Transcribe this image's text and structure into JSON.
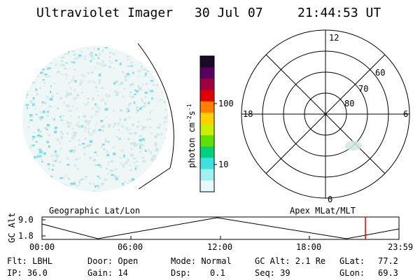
{
  "header": {
    "instrument": "Ultraviolet Imager",
    "date": "30 Jul 07",
    "time": "21:44:53 UT"
  },
  "colorbar": {
    "label": "photon cm⁻²s⁻¹",
    "label_base": "photon cm",
    "label_sup1": "-2",
    "label_mid": "s",
    "label_sup2": "-1",
    "ticks": [
      "100",
      "10"
    ],
    "colors": [
      "#1a0a2a",
      "#5a0060",
      "#a00040",
      "#e00000",
      "#ff8000",
      "#ffd000",
      "#c8f000",
      "#60e000",
      "#00d080",
      "#40e0e0",
      "#a0f0f0",
      "#e8f8f8"
    ]
  },
  "polar": {
    "mlt_labels": [
      "12",
      "18",
      "6",
      "0"
    ],
    "mlat_labels": [
      "60",
      "70",
      "80"
    ]
  },
  "timeline": {
    "left_label": "Geographic Lat/Lon",
    "right_label": "Apex MLat/MLT",
    "y_axis_title": "GC Alt",
    "y_ticks": [
      "9.0",
      "1.8"
    ],
    "x_ticks": [
      "00:00",
      "06:00",
      "12:00",
      "18:00",
      "23:59"
    ],
    "marker_color": "#e00000"
  },
  "info": {
    "flt": "Flt: LBHL",
    "ip": "IP: 36.0",
    "door": "Door: Open",
    "gain": "Gain: 14",
    "mode": "Mode: Normal",
    "dsp_label": "Dsp:",
    "dsp_value": "0.1",
    "gc_alt": "GC Alt: 2.1 Re",
    "seq": "Seq: 39",
    "glat_label": "GLat:",
    "glat_value": "77.2",
    "glon_label": "GLon:",
    "glon_value": "69.3"
  }
}
